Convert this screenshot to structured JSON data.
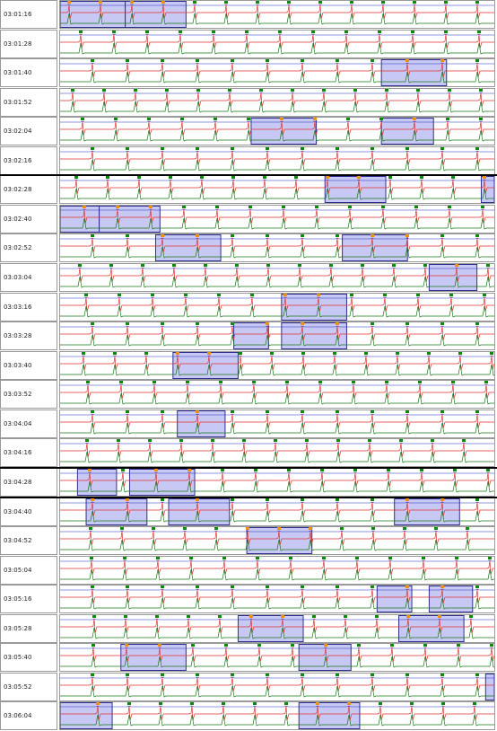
{
  "colors": {
    "trace_red": "#e03030",
    "trace_green": "#1a7a1a",
    "trace_blue": "#2030c0",
    "beat_marker_green": "#0b8a0b",
    "beat_marker_orange": "#f09010",
    "highlight_fill": "#c8c8f4",
    "highlight_border": "#303090"
  },
  "strips": [
    {
      "time": "03:01:16",
      "highlights": [
        [
          0.0,
          0.15
        ],
        [
          0.15,
          0.29
        ]
      ]
    },
    {
      "time": "03:01:28",
      "highlights": []
    },
    {
      "time": "03:01:40",
      "highlights": [
        [
          0.74,
          0.89
        ]
      ]
    },
    {
      "time": "03:01:52",
      "highlights": []
    },
    {
      "time": "03:02:04",
      "highlights": [
        [
          0.44,
          0.59
        ],
        [
          0.74,
          0.86
        ]
      ]
    },
    {
      "time": "03:02:16",
      "highlights": []
    },
    {
      "time": "03:02:28",
      "highlights": [
        [
          0.61,
          0.75
        ],
        [
          0.97,
          1.0
        ]
      ]
    },
    {
      "time": "03:02:40",
      "highlights": [
        [
          0.0,
          0.09
        ],
        [
          0.09,
          0.23
        ]
      ]
    },
    {
      "time": "03:02:52",
      "highlights": [
        [
          0.22,
          0.37
        ],
        [
          0.65,
          0.8
        ]
      ]
    },
    {
      "time": "03:03:04",
      "highlights": [
        [
          0.85,
          0.96
        ]
      ]
    },
    {
      "time": "03:03:16",
      "highlights": [
        [
          0.51,
          0.66
        ]
      ]
    },
    {
      "time": "03:03:28",
      "highlights": [
        [
          0.4,
          0.48
        ],
        [
          0.51,
          0.66
        ]
      ]
    },
    {
      "time": "03:03:40",
      "highlights": [
        [
          0.26,
          0.41
        ]
      ]
    },
    {
      "time": "03:03:52",
      "highlights": []
    },
    {
      "time": "03:04:04",
      "highlights": [
        [
          0.27,
          0.38
        ]
      ]
    },
    {
      "time": "03:04:16",
      "highlights": []
    },
    {
      "time": "03:04:28",
      "highlights": [
        [
          0.04,
          0.13
        ],
        [
          0.16,
          0.31
        ]
      ]
    },
    {
      "time": "03:04:40",
      "highlights": [
        [
          0.06,
          0.2
        ],
        [
          0.25,
          0.39
        ],
        [
          0.77,
          0.92
        ]
      ]
    },
    {
      "time": "03:04:52",
      "highlights": [
        [
          0.43,
          0.58
        ]
      ]
    },
    {
      "time": "03:05:04",
      "highlights": []
    },
    {
      "time": "03:05:16",
      "highlights": [
        [
          0.73,
          0.81
        ],
        [
          0.85,
          0.95
        ]
      ]
    },
    {
      "time": "03:05:28",
      "highlights": [
        [
          0.41,
          0.56
        ],
        [
          0.78,
          0.93
        ]
      ]
    },
    {
      "time": "03:05:40",
      "highlights": [
        [
          0.14,
          0.29
        ],
        [
          0.55,
          0.67
        ]
      ]
    },
    {
      "time": "03:05:52",
      "highlights": [
        [
          0.98,
          1.0
        ]
      ]
    },
    {
      "time": "03:06:04",
      "highlights": [
        [
          0.0,
          0.12
        ],
        [
          0.55,
          0.69
        ]
      ]
    }
  ],
  "row_separators_after": [
    5,
    15,
    16
  ]
}
